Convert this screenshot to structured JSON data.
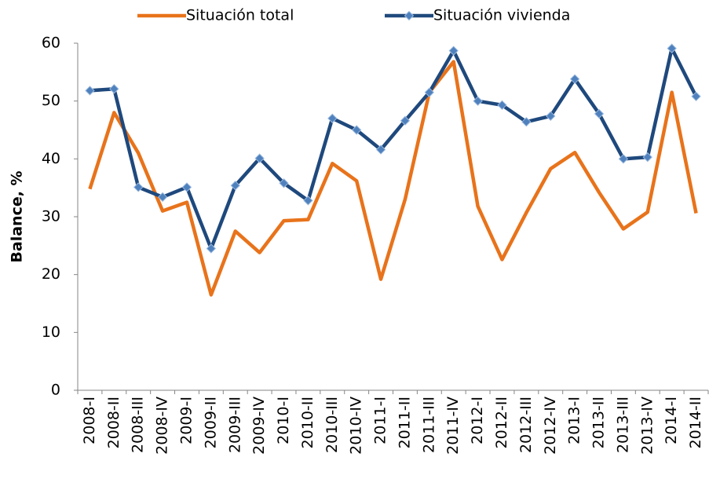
{
  "chart_data": {
    "type": "line",
    "y_label": "Balance, %",
    "categories": [
      "2008-I",
      "2008-II",
      "2008-III",
      "2008-IV",
      "2009-I",
      "2009-II",
      "2009-III",
      "2009-IV",
      "2010-I",
      "2010-II",
      "2010-III",
      "2010-IV",
      "2011-I",
      "2011-II",
      "2011-III",
      "2011-IV",
      "2012-I",
      "2012-II",
      "2012-III",
      "2012-IV",
      "2013-I",
      "2013-II",
      "2013-III",
      "2013-IV",
      "2014-I",
      "2014-II"
    ],
    "series": [
      {
        "name": "Situación total",
        "color": "#e8731b",
        "marker": false,
        "values": [
          34.8,
          48,
          41,
          31,
          32.5,
          16.5,
          27.5,
          23.8,
          29.3,
          29.5,
          39.2,
          36.2,
          19.2,
          33,
          51.5,
          56.8,
          31.8,
          22.6,
          30.7,
          38.3,
          41.1,
          34.2,
          27.9,
          30.8,
          51.5,
          30.6
        ]
      },
      {
        "name": "Situación vivienda",
        "color": "#1f497d",
        "marker": true,
        "values": [
          51.8,
          52.1,
          35.1,
          33.4,
          35.1,
          24.5,
          35.4,
          40.1,
          35.8,
          32.8,
          47,
          45,
          41.6,
          46.6,
          51.5,
          58.7,
          50,
          49.3,
          46.4,
          47.4,
          53.8,
          47.8,
          40,
          40.3,
          59.1,
          50.8
        ]
      }
    ],
    "ylim": [
      0,
      60
    ],
    "yticks": [
      0,
      10,
      20,
      30,
      40,
      50,
      60
    ],
    "grid": false,
    "legend": "top"
  }
}
